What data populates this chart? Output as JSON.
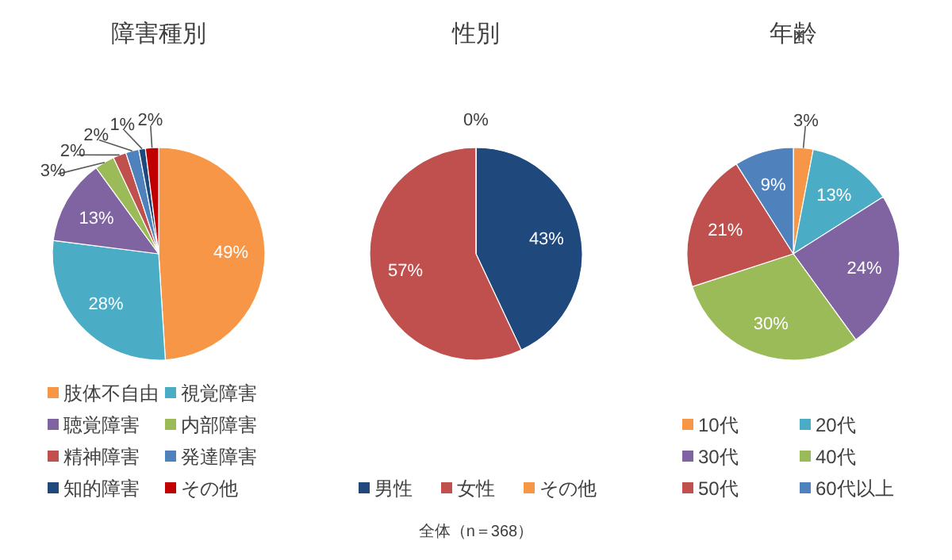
{
  "chart_data": [
    {
      "type": "pie",
      "title": "障害種別",
      "categories": [
        "肢体不自由",
        "視覚障害",
        "聴覚障害",
        "内部障害",
        "精神障害",
        "発達障害",
        "知的障害",
        "その他"
      ],
      "values": [
        49,
        28,
        13,
        3,
        2,
        2,
        1,
        2
      ],
      "value_labels": [
        "49%",
        "28%",
        "13%",
        "3%",
        "2%",
        "2%",
        "1%",
        "2%"
      ],
      "colors": [
        "#f79646",
        "#4bacc6",
        "#8064a2",
        "#9bbb59",
        "#c0504d",
        "#4f81bd",
        "#1f497d",
        "#c00000"
      ],
      "legend": "bottom"
    },
    {
      "type": "pie",
      "title": "性別",
      "categories": [
        "男性",
        "女性",
        "その他"
      ],
      "values": [
        43,
        57,
        0
      ],
      "value_labels": [
        "43%",
        "57%",
        "0%"
      ],
      "colors": [
        "#1f497d",
        "#c0504d",
        "#f79646"
      ],
      "legend": "bottom",
      "annotations": [
        "全体（n＝368）"
      ]
    },
    {
      "type": "pie",
      "title": "年齢",
      "categories": [
        "10代",
        "20代",
        "30代",
        "40代",
        "50代",
        "60代以上"
      ],
      "values": [
        3,
        13,
        24,
        30,
        21,
        9
      ],
      "value_labels": [
        "3%",
        "13%",
        "24%",
        "30%",
        "21%",
        "9%"
      ],
      "colors": [
        "#f79646",
        "#4bacc6",
        "#8064a2",
        "#9bbb59",
        "#c0504d",
        "#4f81bd"
      ],
      "legend": "bottom"
    }
  ]
}
